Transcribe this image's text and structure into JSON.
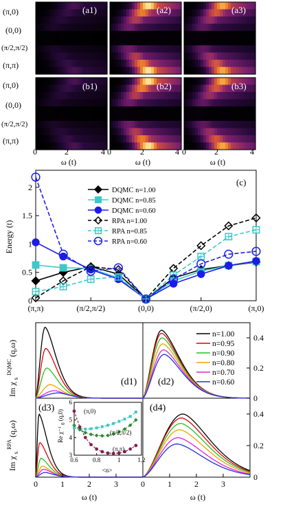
{
  "chart_data": [
    {
      "id": "a",
      "type": "heatmap",
      "panels": [
        "(a1)",
        "(a2)",
        "(a3)"
      ],
      "ylabels": [
        "(π,0)",
        "(0,0)",
        "(π/2,π/2)",
        "(π,π)"
      ],
      "xticks": [
        "0",
        "2",
        "4"
      ],
      "xlabel": "ω (t)",
      "xlim": [
        0,
        4
      ],
      "rows": 10,
      "intensity_scale": [
        0.35,
        1.0,
        0.9
      ]
    },
    {
      "id": "b",
      "type": "heatmap",
      "panels": [
        "(b1)",
        "(b2)",
        "(b3)"
      ],
      "ylabels": [
        "(π,0)",
        "(0,0)",
        "(π/2,π/2)",
        "(π,π)"
      ],
      "xticks": [
        "0",
        "2",
        "4"
      ],
      "xlabel": "ω (t)",
      "xlim": [
        0,
        4
      ],
      "rows": 10,
      "intensity_scale": [
        0.35,
        1.0,
        0.9
      ]
    },
    {
      "id": "c",
      "type": "line",
      "panel": "(c)",
      "ylabel": "Energy (t)",
      "ylim": [
        0,
        2.3
      ],
      "yticks": [
        "0",
        "0.5",
        "1",
        "1.5",
        "2"
      ],
      "ytick_values": [
        0,
        0.5,
        1,
        1.5,
        2
      ],
      "xticks": [
        "(π,π)",
        "(π/2,π/2)",
        "(0,0)",
        "(π/2,0)",
        "(π,0)"
      ],
      "xtick_positions": [
        0,
        2,
        4,
        6,
        8
      ],
      "x": [
        0,
        1,
        2,
        3,
        4,
        5,
        6,
        7,
        8
      ],
      "legend_position": "upper-center",
      "series": [
        {
          "name": "DQMC n=1.00",
          "color": "#000000",
          "marker": "diamond",
          "filled": true,
          "dashed": false,
          "values": [
            0.35,
            0.5,
            0.6,
            0.47,
            0.03,
            0.4,
            0.55,
            0.62,
            0.68
          ]
        },
        {
          "name": "DQMC n=0.85",
          "color": "#3cc8c8",
          "marker": "square",
          "filled": true,
          "dashed": false,
          "values": [
            0.63,
            0.58,
            0.57,
            0.4,
            0.03,
            0.35,
            0.52,
            0.62,
            0.69
          ]
        },
        {
          "name": "DQMC n=0.60",
          "color": "#1c1ce8",
          "marker": "circle",
          "filled": true,
          "dashed": false,
          "values": [
            1.03,
            0.78,
            0.55,
            0.38,
            0.03,
            0.3,
            0.47,
            0.62,
            0.7
          ]
        },
        {
          "name": "RPA n=1.00",
          "color": "#000000",
          "marker": "diamond",
          "filled": false,
          "dashed": true,
          "values": [
            0.05,
            0.35,
            0.6,
            0.55,
            0.03,
            0.57,
            0.97,
            1.32,
            1.46
          ]
        },
        {
          "name": "RPA n=0.85",
          "color": "#3cc8c8",
          "marker": "square",
          "filled": false,
          "dashed": true,
          "values": [
            0.16,
            0.25,
            0.38,
            0.42,
            0.03,
            0.45,
            0.78,
            1.13,
            1.25
          ]
        },
        {
          "name": "RPA n=0.60",
          "color": "#1c1ce8",
          "marker": "circle",
          "filled": false,
          "dashed": true,
          "values": [
            2.18,
            0.82,
            0.52,
            0.58,
            0.03,
            0.38,
            0.65,
            0.82,
            0.87
          ]
        }
      ]
    },
    {
      "id": "d",
      "type": "line",
      "panels": [
        "(d1)",
        "(d2)",
        "(d3)",
        "(d4)"
      ],
      "ylabel_top_main": "Im χ",
      "ylabel_top_sub": "s",
      "ylabel_top_sup": "DQMC",
      "ylabel_top_arg": "(q,ω)",
      "ylabel_bottom_main": "Im χ",
      "ylabel_bottom_sub": "s",
      "ylabel_bottom_sup": "RPA",
      "ylabel_bottom_arg": "(q,ω)",
      "xlabel": "ω (t)",
      "xticks": [
        "0",
        "1",
        "2",
        "3"
      ],
      "right_yticks": [
        "0",
        "0.2",
        "0.4"
      ],
      "right_ytick_values": [
        0,
        0.2,
        0.4
      ],
      "ylim": [
        0,
        0.5
      ],
      "legend": [
        "n=1.00",
        "n=0.95",
        "n=0.90",
        "n=0.80",
        "n=0.70",
        "n=0.60"
      ],
      "colors": [
        "#000000",
        "#e00000",
        "#20c020",
        "#f0a000",
        "#e020e0",
        "#2030e0"
      ],
      "d1_peak": {
        "omega": [
          0.35,
          0.38,
          0.42,
          0.55,
          0.7,
          0.85
        ],
        "height": [
          0.47,
          0.33,
          0.2,
          0.09,
          0.05,
          0.035
        ]
      },
      "d2_peak": {
        "omega": [
          0.7,
          0.7,
          0.72,
          0.75,
          0.78,
          0.8
        ],
        "height": [
          0.45,
          0.43,
          0.4,
          0.36,
          0.32,
          0.29
        ]
      },
      "d3_peak": {
        "omega": [
          0.12,
          0.15,
          0.2,
          0.25,
          0.3,
          0.35
        ],
        "height": [
          0.4,
          0.22,
          0.12,
          0.07,
          0.05,
          0.03
        ]
      },
      "d4_peak": {
        "omega": [
          1.5,
          1.45,
          1.42,
          1.38,
          1.32,
          1.28
        ],
        "height": [
          0.4,
          0.375,
          0.34,
          0.3,
          0.25,
          0.21
        ]
      }
    },
    {
      "id": "inset",
      "type": "line",
      "ylabel": "Re χ⁻¹",
      "ylabel_sub": "0",
      "ylabel_arg": "(q,0)",
      "xlabel": "<n>",
      "xticks": [
        "0.6",
        "0.8",
        "1",
        "1.2"
      ],
      "xtick_values": [
        0.6,
        0.8,
        1.0,
        1.2
      ],
      "yticks": [
        "3",
        "4",
        "5",
        "6"
      ],
      "ytick_values": [
        3,
        4,
        5,
        6
      ],
      "xlim": [
        0.6,
        1.2
      ],
      "ylim": [
        3,
        6
      ],
      "x": [
        0.6,
        0.65,
        0.7,
        0.75,
        0.8,
        0.85,
        0.9,
        0.95,
        1.0,
        1.05,
        1.1,
        1.15
      ],
      "series": [
        {
          "name": "(π,0)",
          "color": "#3cc8c8",
          "marker": "square",
          "values": [
            4.55,
            4.5,
            4.48,
            4.5,
            4.55,
            4.62,
            4.7,
            4.8,
            4.92,
            5.05,
            5.2,
            5.45
          ]
        },
        {
          "name": "(π/2,π/2)",
          "color": "#2e8b2e",
          "marker": "diamond",
          "values": [
            4.7,
            4.45,
            4.28,
            4.18,
            4.12,
            4.1,
            4.12,
            4.2,
            4.32,
            4.48,
            4.7,
            5.0
          ]
        },
        {
          "name": "(π,π)",
          "color": "#802050",
          "marker": "circle",
          "values": [
            5.5,
            4.6,
            4.0,
            3.6,
            3.35,
            3.2,
            3.12,
            3.1,
            3.12,
            3.2,
            3.35,
            3.55
          ]
        }
      ]
    }
  ]
}
